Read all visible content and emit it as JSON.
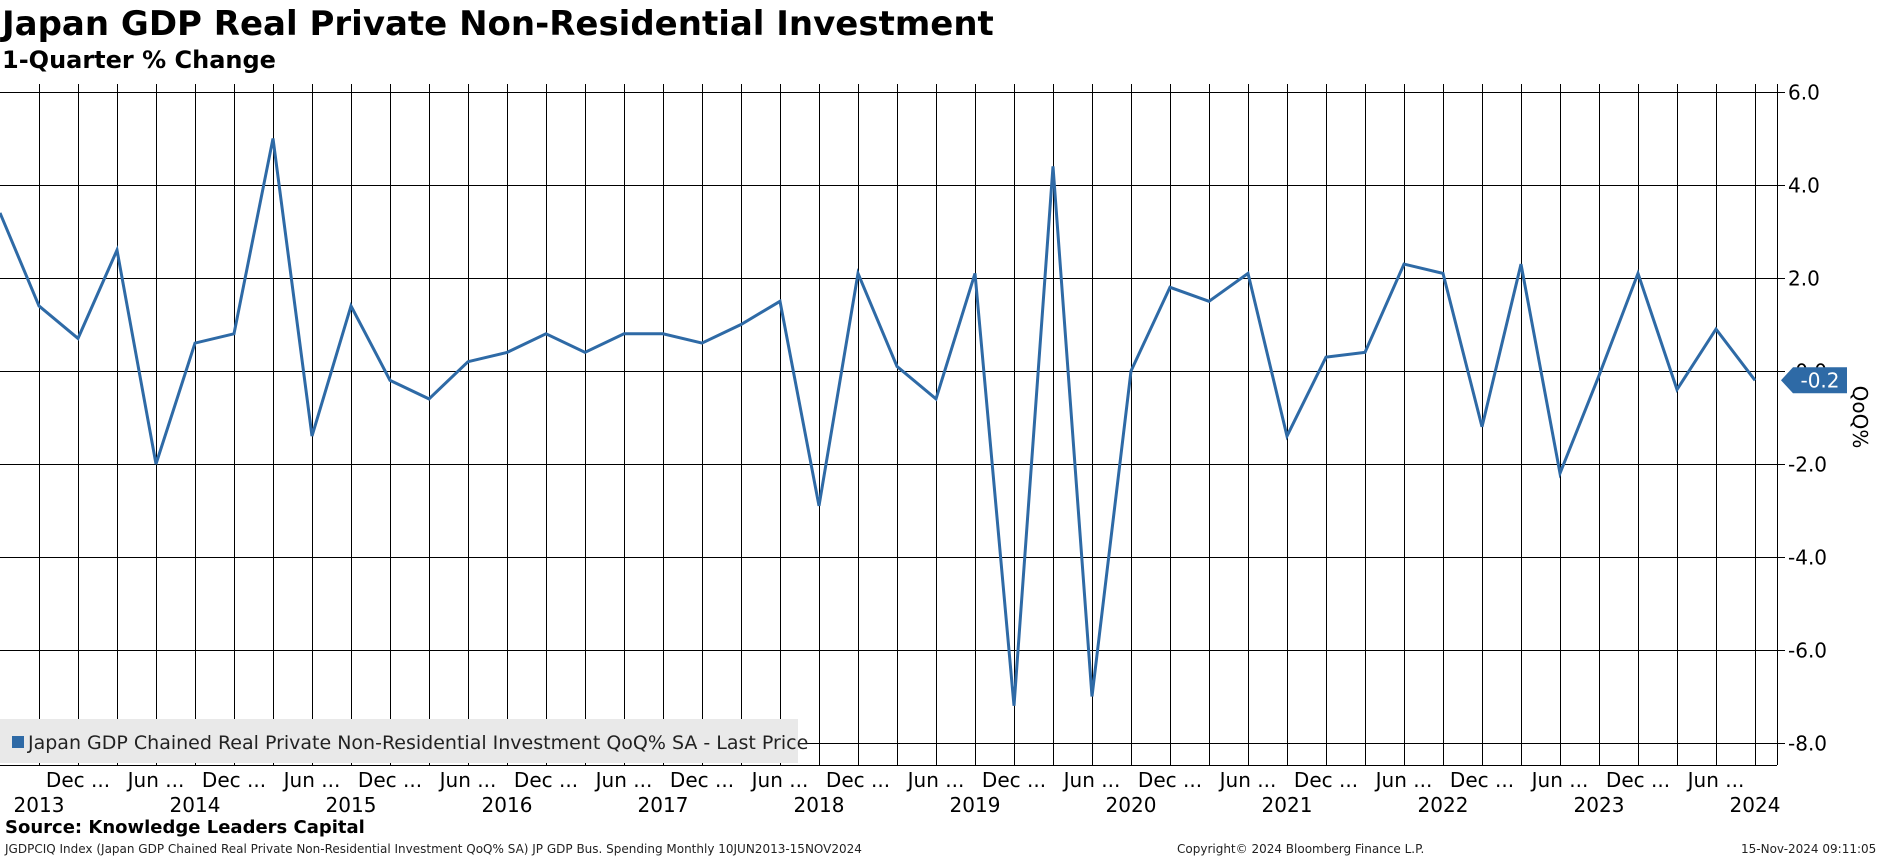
{
  "header": {
    "title": "Japan GDP Real Private Non-Residential Investment",
    "subtitle": "1-Quarter % Change"
  },
  "footer": {
    "source": "Source: Knowledge Leaders Capital",
    "description": "JGDPCIQ Index (Japan GDP Chained Real Private Non-Residential Investment QoQ% SA) JP GDP Bus. Spending  Monthly 10JUN2013-15NOV2024",
    "copyright": "Copyright© 2024 Bloomberg Finance L.P.",
    "timestamp": "15-Nov-2024 09:11:05"
  },
  "colors": {
    "series": "#2e6aa6",
    "grid": "#000000",
    "legend_bg": "#e9e9e9"
  },
  "chart_data": {
    "type": "line",
    "title": "Japan GDP Real Private Non-Residential Investment",
    "subtitle": "1-Quarter % Change",
    "ylabel": "QoQ%",
    "ylim": [
      -8.5,
      6.5
    ],
    "yticks": [
      6.0,
      4.0,
      2.0,
      0.0,
      -2.0,
      -4.0,
      -6.0,
      -8.0
    ],
    "ytick_labels": [
      "6.0",
      "4.0",
      "2.0",
      "-0.0",
      "-2.0",
      "-4.0",
      "-6.0",
      "-8.0"
    ],
    "x_period_labels": [
      "Dec ...",
      "Jun ...",
      "Dec ...",
      "Jun ...",
      "Dec ...",
      "Jun ...",
      "Dec ...",
      "Jun ...",
      "Dec ...",
      "Jun ...",
      "Dec ...",
      "Jun ...",
      "Dec ...",
      "Jun ...",
      "Dec ...",
      "Jun ...",
      "Dec ...",
      "Jun ...",
      "Dec ...",
      "Jun ...",
      "Dec ...",
      "Jun ..."
    ],
    "x_years": [
      "2013",
      "2014",
      "2015",
      "2016",
      "2017",
      "2018",
      "2019",
      "2020",
      "2021",
      "2022",
      "2023",
      "2024"
    ],
    "series": [
      {
        "name": "Japan GDP Chained Real Private Non-Residential Investment QoQ% SA - Last Price",
        "last_value_label": "-0.2",
        "x": [
          "Jun 2013",
          "Sep 2013",
          "Dec 2013",
          "Mar 2014",
          "Jun 2014",
          "Sep 2014",
          "Dec 2014",
          "Mar 2015",
          "Jun 2015",
          "Sep 2015",
          "Dec 2015",
          "Mar 2016",
          "Jun 2016",
          "Sep 2016",
          "Dec 2016",
          "Mar 2017",
          "Jun 2017",
          "Sep 2017",
          "Dec 2017",
          "Mar 2018",
          "Jun 2018",
          "Sep 2018",
          "Dec 2018",
          "Mar 2019",
          "Jun 2019",
          "Sep 2019",
          "Dec 2019",
          "Mar 2020",
          "Jun 2020",
          "Sep 2020",
          "Dec 2020",
          "Mar 2021",
          "Jun 2021",
          "Sep 2021",
          "Dec 2021",
          "Mar 2022",
          "Jun 2022",
          "Sep 2022",
          "Dec 2022",
          "Mar 2023",
          "Jun 2023",
          "Sep 2023",
          "Dec 2023",
          "Mar 2024",
          "Jun 2024",
          "Sep 2024"
        ],
        "values": [
          3.4,
          1.4,
          0.7,
          2.6,
          -2.0,
          0.6,
          0.8,
          5.0,
          -1.4,
          1.4,
          -0.2,
          -0.6,
          0.2,
          0.4,
          0.8,
          0.4,
          0.8,
          0.8,
          0.6,
          1.0,
          1.5,
          -2.9,
          2.1,
          0.1,
          -0.6,
          2.1,
          -7.2,
          4.4,
          -7.0,
          0.0,
          1.8,
          1.5,
          2.1,
          -1.4,
          0.3,
          0.4,
          2.3,
          2.1,
          -1.2,
          2.3,
          -2.2,
          -0.1,
          2.1,
          -0.4,
          0.9,
          -0.2
        ]
      }
    ]
  }
}
